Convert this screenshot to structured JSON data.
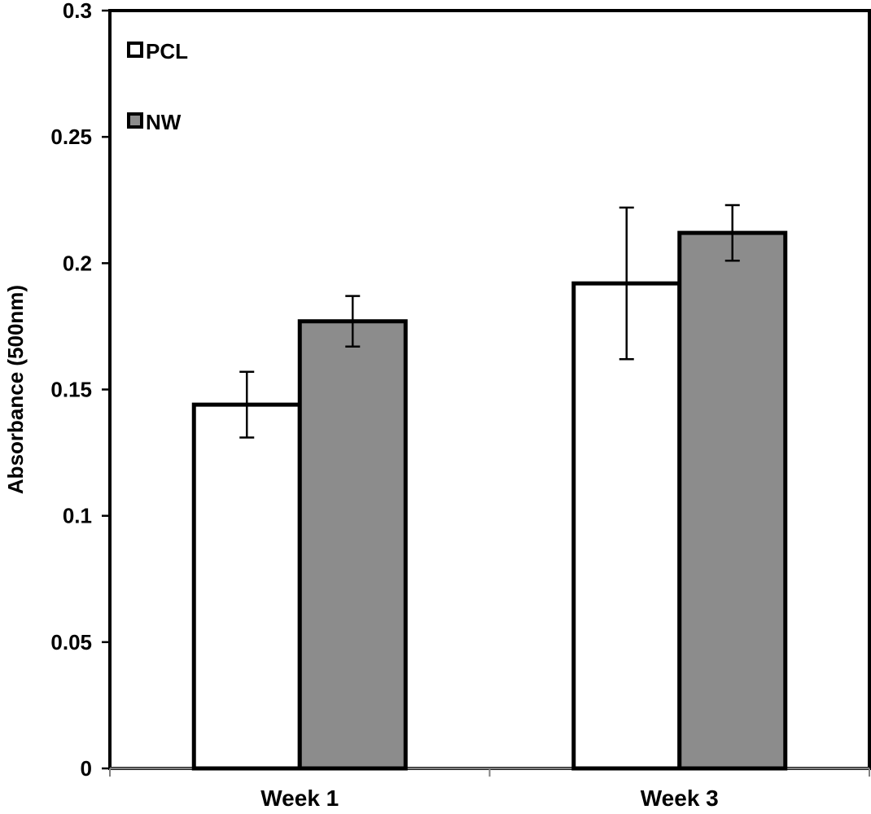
{
  "chart_data": {
    "type": "bar",
    "title": "",
    "xlabel": "",
    "ylabel": "Absorbance (500nm)",
    "ylim": [
      0,
      0.3
    ],
    "yticks": [
      0,
      0.05,
      0.1,
      0.15,
      0.2,
      0.25,
      0.3
    ],
    "ytick_labels": [
      "0",
      "0.05",
      "0.1",
      "0.15",
      "0.2",
      "0.25",
      "0.3"
    ],
    "categories": [
      "Week 1",
      "Week 3"
    ],
    "series": [
      {
        "name": "PCL",
        "color": "#ffffff",
        "values": [
          0.144,
          0.192
        ],
        "errors": [
          0.013,
          0.03
        ]
      },
      {
        "name": "NW",
        "color": "#8c8c8c",
        "values": [
          0.177,
          0.212
        ],
        "errors": [
          0.01,
          0.011
        ]
      }
    ],
    "legend_position": "top-left",
    "grid": false
  }
}
